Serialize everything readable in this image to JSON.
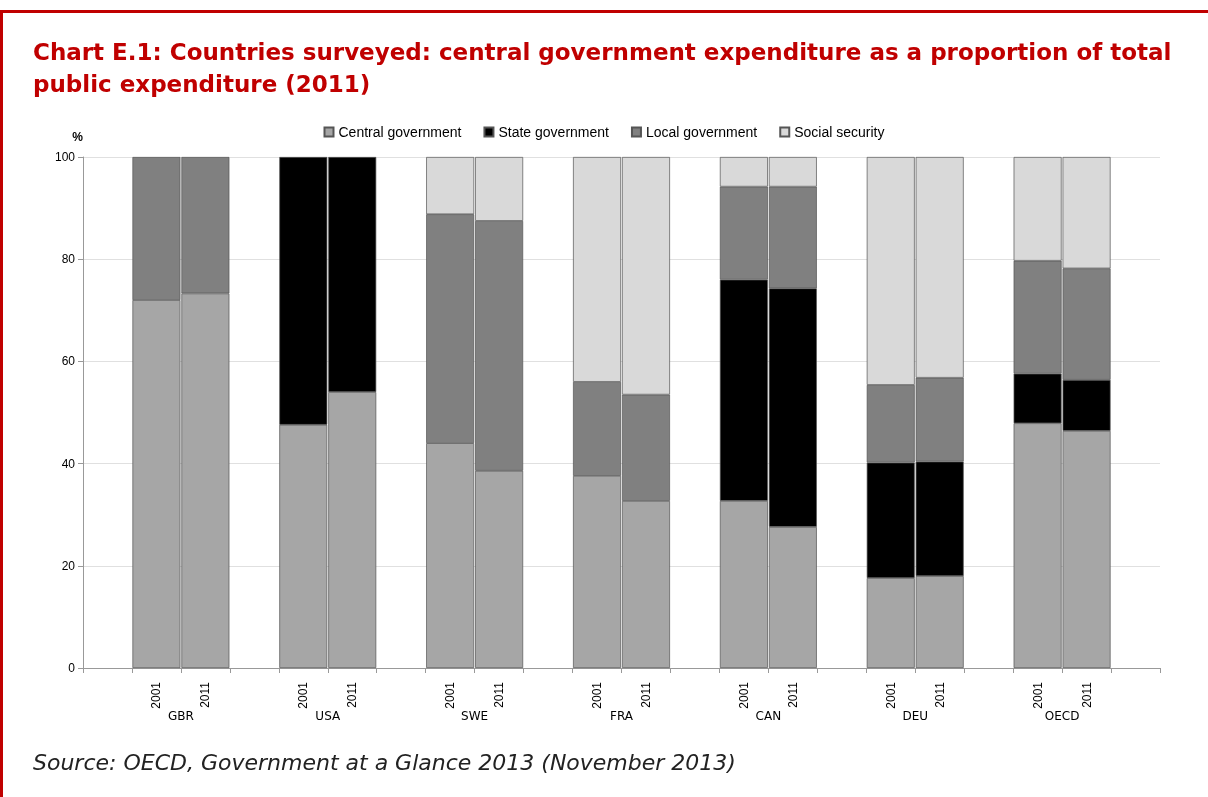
{
  "chart_data": {
    "type": "bar",
    "stacked": true,
    "title": "Chart E.1: Countries surveyed: central government expenditure as a proportion of total public expenditure (2011)",
    "ylabel": "%",
    "categories": [
      "2001",
      "2011",
      "2001",
      "2011",
      "2001",
      "2011",
      "2001",
      "2011",
      "2001",
      "2011",
      "2001",
      "2011",
      "2001",
      "2011"
    ],
    "series": [
      {
        "name": "Central government",
        "color": "#a6a6a6",
        "values": [
          72,
          73.3,
          47.6,
          54,
          44,
          38.6,
          37.6,
          32.7,
          32.7,
          27.6,
          17.6,
          18,
          47.9,
          46.4
        ]
      },
      {
        "name": "State government",
        "color": "#000000",
        "values": [
          null,
          null,
          52.4,
          46,
          null,
          null,
          null,
          null,
          43.3,
          46.7,
          22.6,
          22.4,
          9.7,
          10
        ]
      },
      {
        "name": "Local government",
        "color": "#808080",
        "values": [
          28,
          26.7,
          null,
          null,
          44.8,
          48.9,
          18.4,
          20.8,
          18.2,
          19.9,
          15.2,
          16.4,
          22.1,
          21.8
        ]
      },
      {
        "name": "Social security",
        "color": "#d9d9d9",
        "values": [
          null,
          null,
          null,
          null,
          11.2,
          12.5,
          44,
          46.5,
          5.8,
          5.8,
          44.6,
          43.2,
          20.3,
          21.8
        ]
      }
    ],
    "ylim": [
      0,
      100
    ],
    "yticks": [
      0,
      20,
      40,
      60,
      80,
      100
    ],
    "grid": "y",
    "legend": "top",
    "annotations": [
      "GBR",
      "USA",
      "SWE",
      "FRA",
      "CAN",
      "DEU",
      "OECD",
      "Source: OECD, Government at a Glance 2013 (November 2013)"
    ]
  }
}
